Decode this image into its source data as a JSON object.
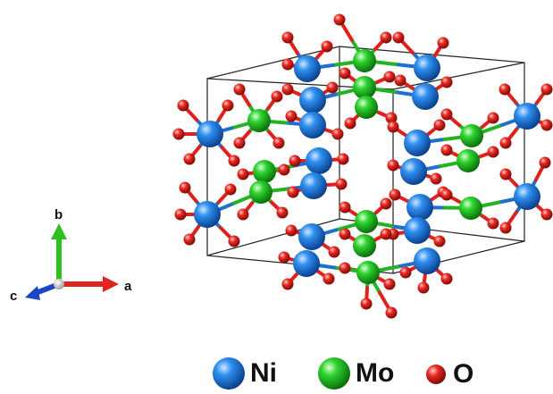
{
  "axes": {
    "a": "a",
    "b": "b",
    "c": "c",
    "colors": {
      "a": "#e0251e",
      "b": "#2fbf1e",
      "c": "#1c46c8",
      "origin": "#cfcfcf"
    }
  },
  "legend": [
    {
      "label": "Ni",
      "color": "#1f7fe0",
      "icon": "ni-atom-icon"
    },
    {
      "label": "Mo",
      "color": "#22cc22",
      "icon": "mo-atom-icon"
    },
    {
      "label": "O",
      "color": "#e8201b",
      "icon": "o-atom-icon"
    }
  ],
  "atom_colors": {
    "Ni": "#1f7fe0",
    "Mo": "#22c422",
    "O": "#e2201b"
  }
}
